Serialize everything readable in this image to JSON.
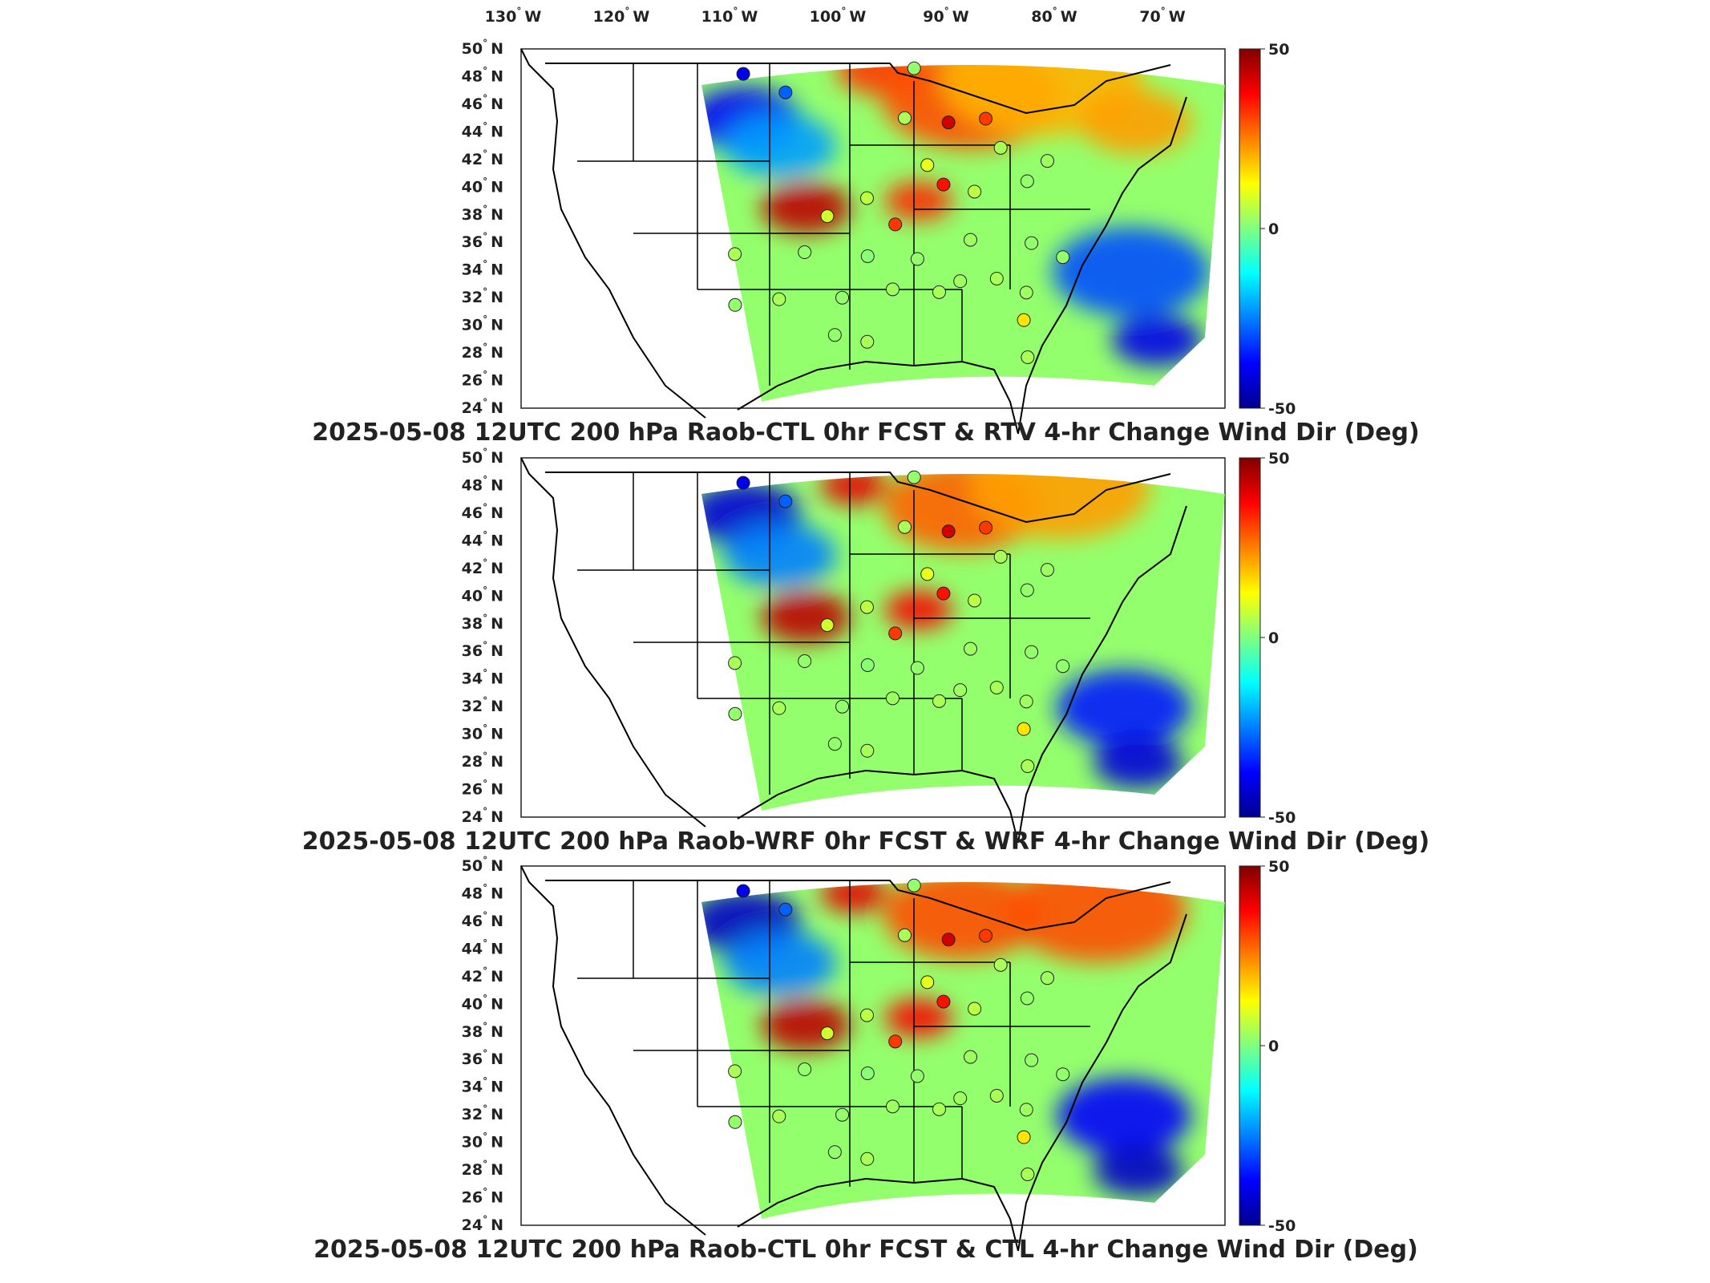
{
  "longitude_labels": [
    "130",
    "120",
    "110",
    "100",
    "90",
    "80",
    "70"
  ],
  "longitude_unit": "W",
  "latitude_labels": [
    "50",
    "48",
    "46",
    "44",
    "42",
    "40",
    "38",
    "36",
    "34",
    "32",
    "30",
    "28",
    "26",
    "24"
  ],
  "latitude_unit": "N",
  "degree_symbol": "°",
  "colorbar": {
    "ticks": [
      "50",
      "0",
      "-50"
    ],
    "range": [
      -50,
      50
    ],
    "colormap": [
      "#00008f",
      "#0000ff",
      "#00ffff",
      "#ffff00",
      "#ff0000",
      "#800000"
    ]
  },
  "panels": [
    {
      "title": "2025-05-08 12UTC 200 hPa Raob-CTL 0hr FCST & RTV 4-hr Change Wind Dir (Deg)"
    },
    {
      "title": "2025-05-08 12UTC 200 hPa Raob-WRF 0hr FCST & WRF 4-hr Change Wind Dir (Deg)"
    },
    {
      "title": "2025-05-08 12UTC 200 hPa Raob-CTL 0hr FCST & CTL 4-hr Change Wind Dir (Deg)"
    }
  ],
  "stations": [
    {
      "lon": -111.4,
      "lat": 48.3,
      "value": -40
    },
    {
      "lon": -106.6,
      "lat": 46.9,
      "value": -28
    },
    {
      "lon": -92.3,
      "lat": 48.6,
      "value": 2
    },
    {
      "lon": -88.6,
      "lat": 44.7,
      "value": 42
    },
    {
      "lon": -84.5,
      "lat": 45.0,
      "value": 32
    },
    {
      "lon": -93.4,
      "lat": 45.0,
      "value": 4
    },
    {
      "lon": -91.0,
      "lat": 41.6,
      "value": 10
    },
    {
      "lon": -89.3,
      "lat": 40.2,
      "value": 36
    },
    {
      "lon": -86.0,
      "lat": 39.7,
      "value": 6
    },
    {
      "lon": -83.0,
      "lat": 42.9,
      "value": 4
    },
    {
      "lon": -80.3,
      "lat": 40.5,
      "value": 2
    },
    {
      "lon": -78.0,
      "lat": 42.0,
      "value": 3
    },
    {
      "lon": -101.7,
      "lat": 37.9,
      "value": 8
    },
    {
      "lon": -97.5,
      "lat": 39.2,
      "value": 6
    },
    {
      "lon": -94.5,
      "lat": 37.3,
      "value": 32
    },
    {
      "lon": -111.3,
      "lat": 35.2,
      "value": 4
    },
    {
      "lon": -104.0,
      "lat": 35.3,
      "value": 2
    },
    {
      "lon": -97.4,
      "lat": 35.0,
      "value": 1
    },
    {
      "lon": -92.2,
      "lat": 34.8,
      "value": 2
    },
    {
      "lon": -86.6,
      "lat": 36.2,
      "value": 3
    },
    {
      "lon": -80.2,
      "lat": 36.0,
      "value": 2
    },
    {
      "lon": -77.0,
      "lat": 35.0,
      "value": 2
    },
    {
      "lon": -84.0,
      "lat": 33.4,
      "value": 4
    },
    {
      "lon": -87.8,
      "lat": 33.2,
      "value": 3
    },
    {
      "lon": -90.0,
      "lat": 32.4,
      "value": 4
    },
    {
      "lon": -94.8,
      "lat": 32.6,
      "value": 3
    },
    {
      "lon": -100.0,
      "lat": 32.0,
      "value": 2
    },
    {
      "lon": -106.5,
      "lat": 31.9,
      "value": 4
    },
    {
      "lon": -111.0,
      "lat": 31.5,
      "value": 2
    },
    {
      "lon": -97.4,
      "lat": 28.8,
      "value": 4
    },
    {
      "lon": -100.7,
      "lat": 29.3,
      "value": 2
    },
    {
      "lon": -81.4,
      "lat": 30.4,
      "value": 15
    },
    {
      "lon": -81.2,
      "lat": 27.7,
      "value": 4
    },
    {
      "lon": -81.0,
      "lat": 32.4,
      "value": 3
    }
  ],
  "field_features": [
    [
      {
        "lon": -111,
        "lat": 45,
        "value": -38,
        "r": 5
      },
      {
        "lon": -107,
        "lat": 43,
        "value": -22,
        "r": 5
      },
      {
        "lon": -104,
        "lat": 38.5,
        "value": 44,
        "r": 4
      },
      {
        "lon": -96,
        "lat": 48.5,
        "value": 32,
        "r": 4
      },
      {
        "lon": -86,
        "lat": 46.5,
        "value": 30,
        "r": 8
      },
      {
        "lon": -78,
        "lat": 48,
        "value": 20,
        "r": 9
      },
      {
        "lon": -68,
        "lat": 45,
        "value": 22,
        "r": 5
      },
      {
        "lon": -70,
        "lat": 34,
        "value": -30,
        "r": 7
      },
      {
        "lon": -68,
        "lat": 29,
        "value": -40,
        "r": 4
      },
      {
        "lon": -92,
        "lat": 39,
        "value": 34,
        "r": 3
      }
    ],
    [
      {
        "lon": -111,
        "lat": 46,
        "value": -42,
        "r": 5
      },
      {
        "lon": -107,
        "lat": 43,
        "value": -25,
        "r": 5
      },
      {
        "lon": -104,
        "lat": 38.5,
        "value": 44,
        "r": 4
      },
      {
        "lon": -99,
        "lat": 48,
        "value": 40,
        "r": 3
      },
      {
        "lon": -87,
        "lat": 46.5,
        "value": 28,
        "r": 7
      },
      {
        "lon": -76,
        "lat": 48,
        "value": 22,
        "r": 8
      },
      {
        "lon": -71,
        "lat": 32,
        "value": -35,
        "r": 6
      },
      {
        "lon": -70,
        "lat": 28,
        "value": -42,
        "r": 4
      },
      {
        "lon": -92,
        "lat": 39,
        "value": 38,
        "r": 3
      }
    ],
    [
      {
        "lon": -111,
        "lat": 46,
        "value": -44,
        "r": 5
      },
      {
        "lon": -107,
        "lat": 43,
        "value": -25,
        "r": 5
      },
      {
        "lon": -104,
        "lat": 38.5,
        "value": 44,
        "r": 4
      },
      {
        "lon": -99,
        "lat": 48,
        "value": 40,
        "r": 3
      },
      {
        "lon": -87,
        "lat": 46.5,
        "value": 30,
        "r": 7
      },
      {
        "lon": -72,
        "lat": 47,
        "value": 30,
        "r": 8
      },
      {
        "lon": -71,
        "lat": 32,
        "value": -38,
        "r": 6
      },
      {
        "lon": -70,
        "lat": 28,
        "value": -44,
        "r": 4
      },
      {
        "lon": -92,
        "lat": 39,
        "value": 38,
        "r": 3
      }
    ]
  ]
}
